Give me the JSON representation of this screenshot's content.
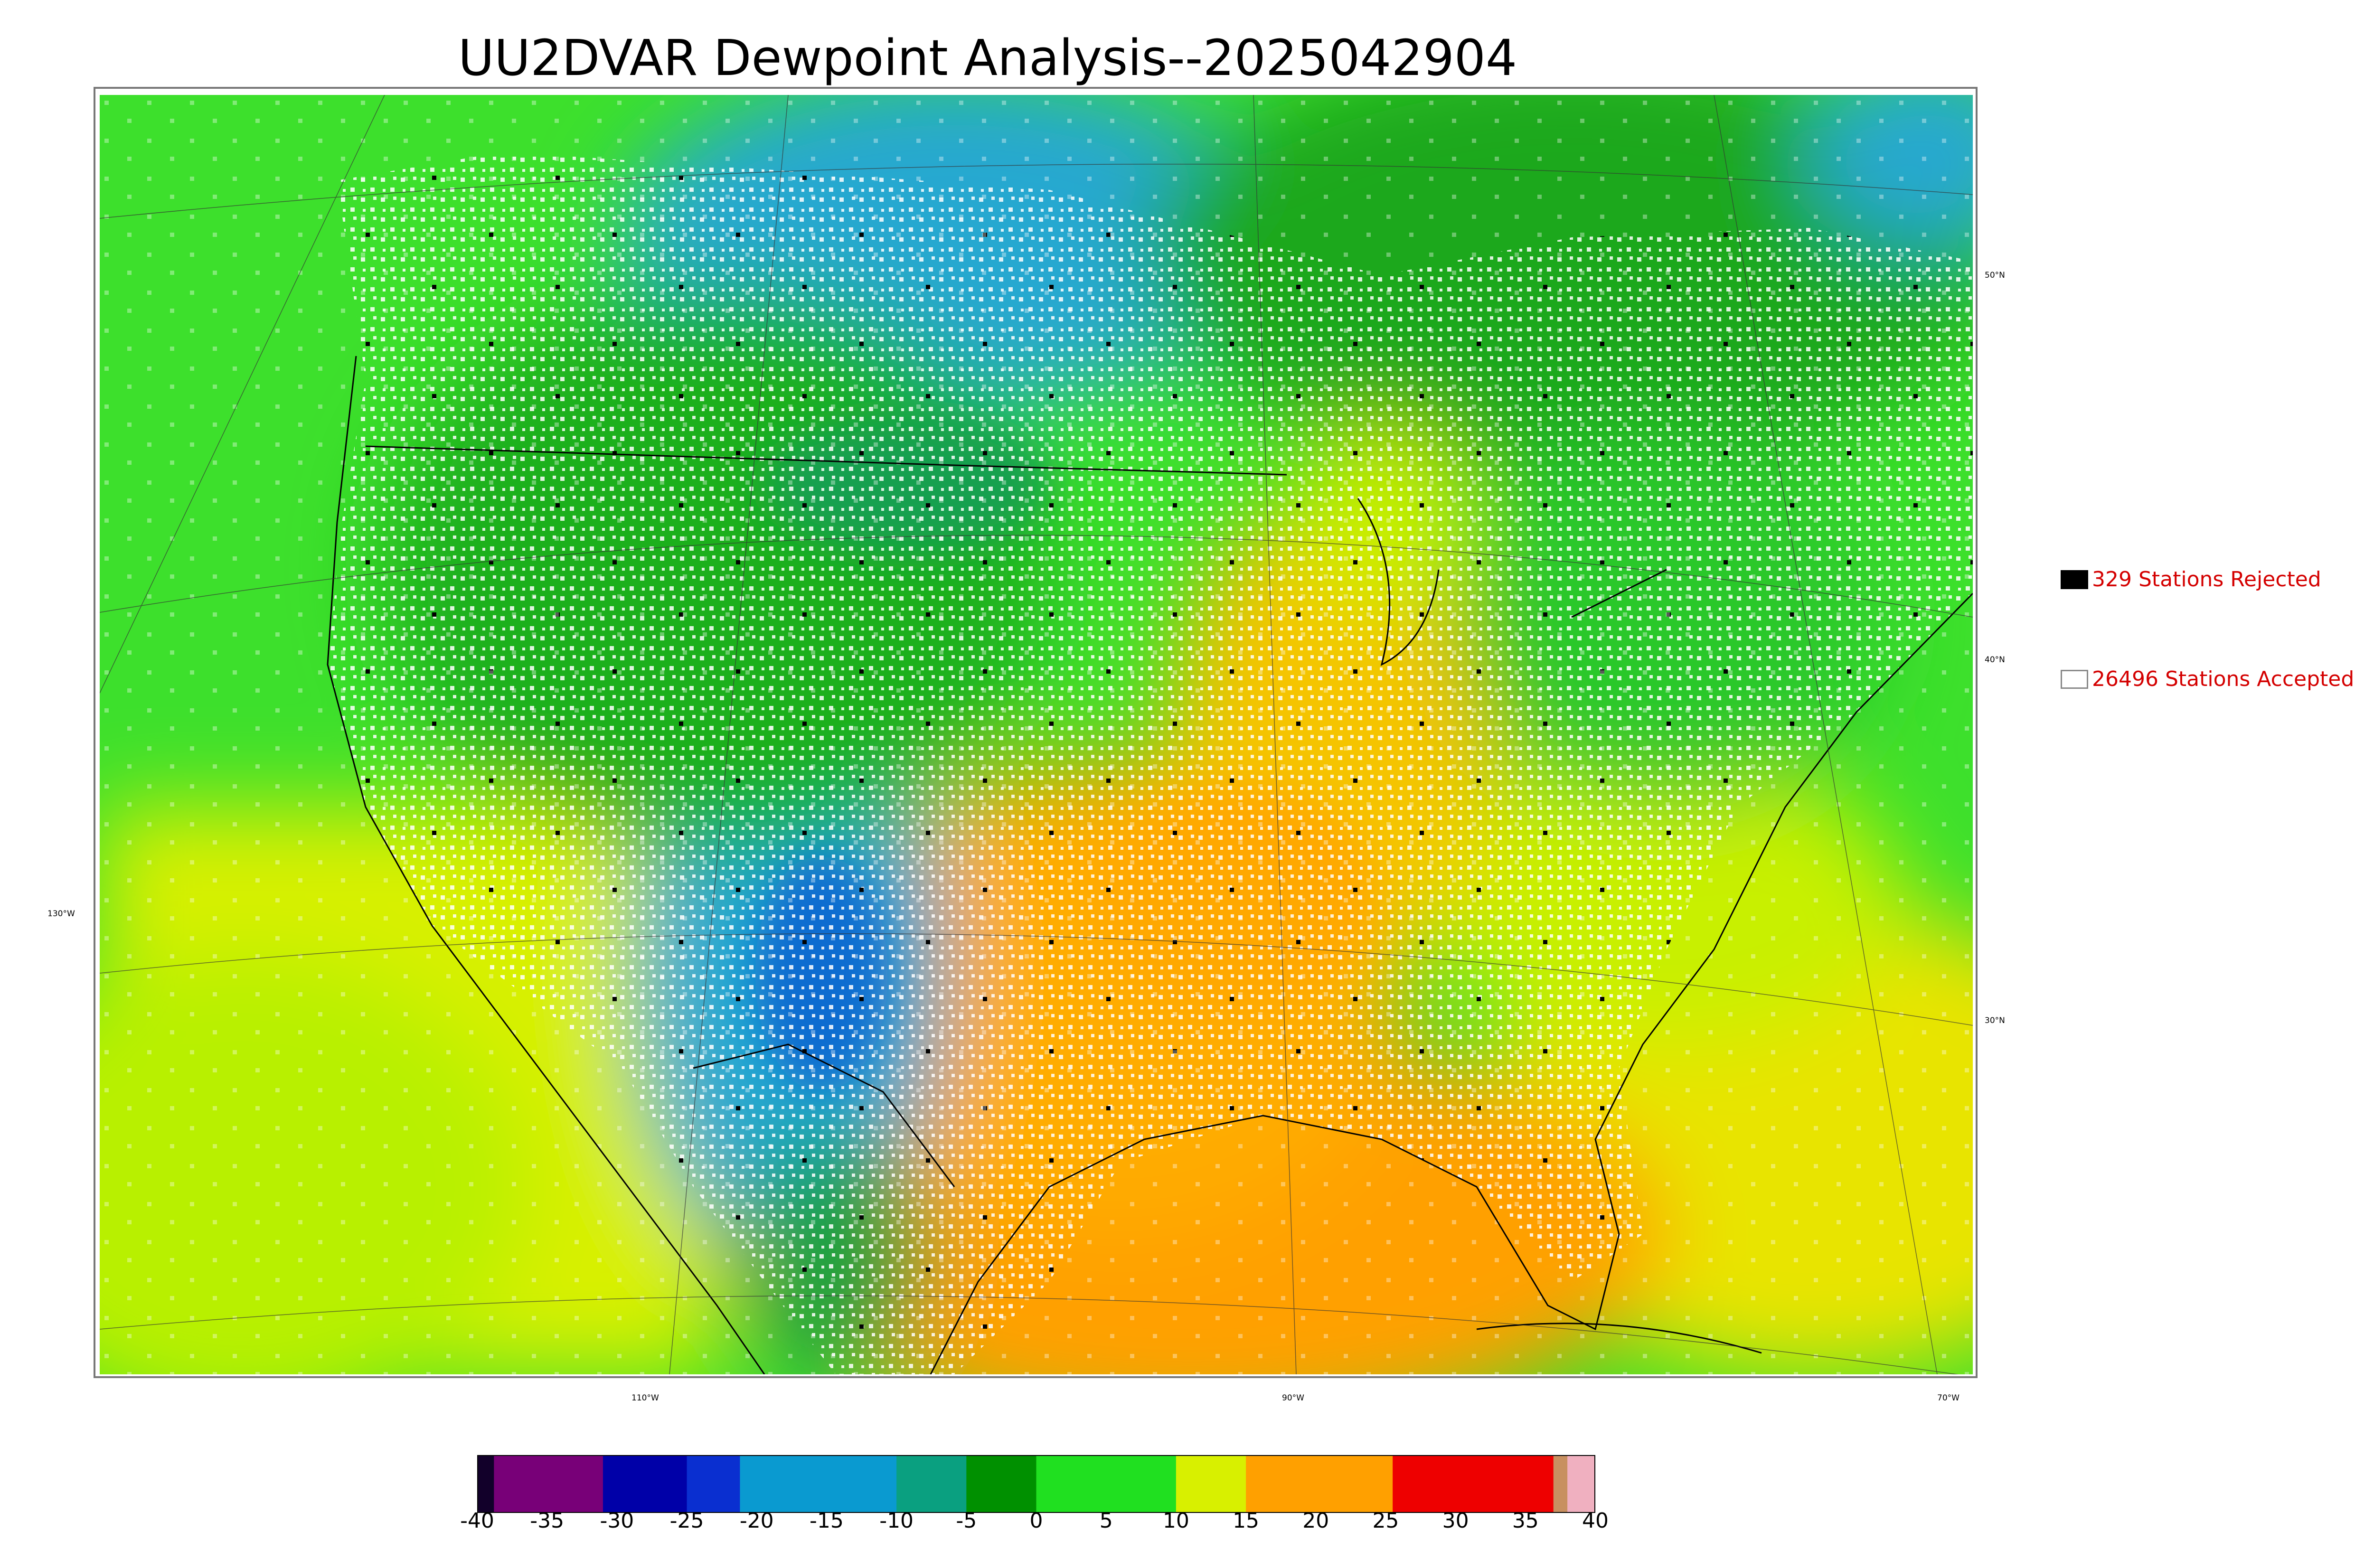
{
  "title": "UU2DVAR Dewpoint Analysis--2025042904",
  "legend": {
    "rejected": {
      "label": "329 Stations Rejected",
      "color": "#000000"
    },
    "accepted": {
      "label": "26496 Stations Accepted",
      "color": "#ffffff"
    }
  },
  "latitude_labels": [
    "50°N",
    "40°N",
    "30°N"
  ],
  "longitude_labels": [
    "130°W",
    "110°W",
    "90°W",
    "70°W"
  ],
  "colorbar": {
    "ticks": [
      "-40",
      "-35",
      "-30",
      "-25",
      "-20",
      "-15",
      "-10",
      "-5",
      "0",
      "5",
      "10",
      "15",
      "20",
      "25",
      "30",
      "35",
      "40"
    ],
    "range": [
      -40,
      40
    ],
    "segments": [
      {
        "from": -40,
        "to": -38.8,
        "color": "#12002a"
      },
      {
        "from": -38.8,
        "to": -35,
        "color": "#780078"
      },
      {
        "from": -35,
        "to": -31,
        "color": "#780078"
      },
      {
        "from": -31,
        "to": -27,
        "color": "#0000a8"
      },
      {
        "from": -27,
        "to": -25,
        "color": "#0000a8"
      },
      {
        "from": -25,
        "to": -21.2,
        "color": "#0a2fd0"
      },
      {
        "from": -21.2,
        "to": -10,
        "color": "#0a9ad0"
      },
      {
        "from": -10,
        "to": -5,
        "color": "#0aa080"
      },
      {
        "from": -5,
        "to": 0,
        "color": "#009000"
      },
      {
        "from": 0,
        "to": 10,
        "color": "#20e020"
      },
      {
        "from": 10,
        "to": 15,
        "color": "#d8f000"
      },
      {
        "from": 15,
        "to": 25.5,
        "color": "#ffa000"
      },
      {
        "from": 25.5,
        "to": 37,
        "color": "#ee0000"
      },
      {
        "from": 37,
        "to": 38,
        "color": "#c89060"
      },
      {
        "from": 38,
        "to": 40,
        "color": "#f0b0c0"
      }
    ]
  },
  "field_colors": {
    "ocean_west": "#3de02c",
    "ocean_south": "#e8e400",
    "gulf": "#ffa000",
    "canada_north": "#1fa81f",
    "rockies_dry": "#25a8d0",
    "plains_warm": "#f5c400",
    "east": "#2ac82a"
  }
}
